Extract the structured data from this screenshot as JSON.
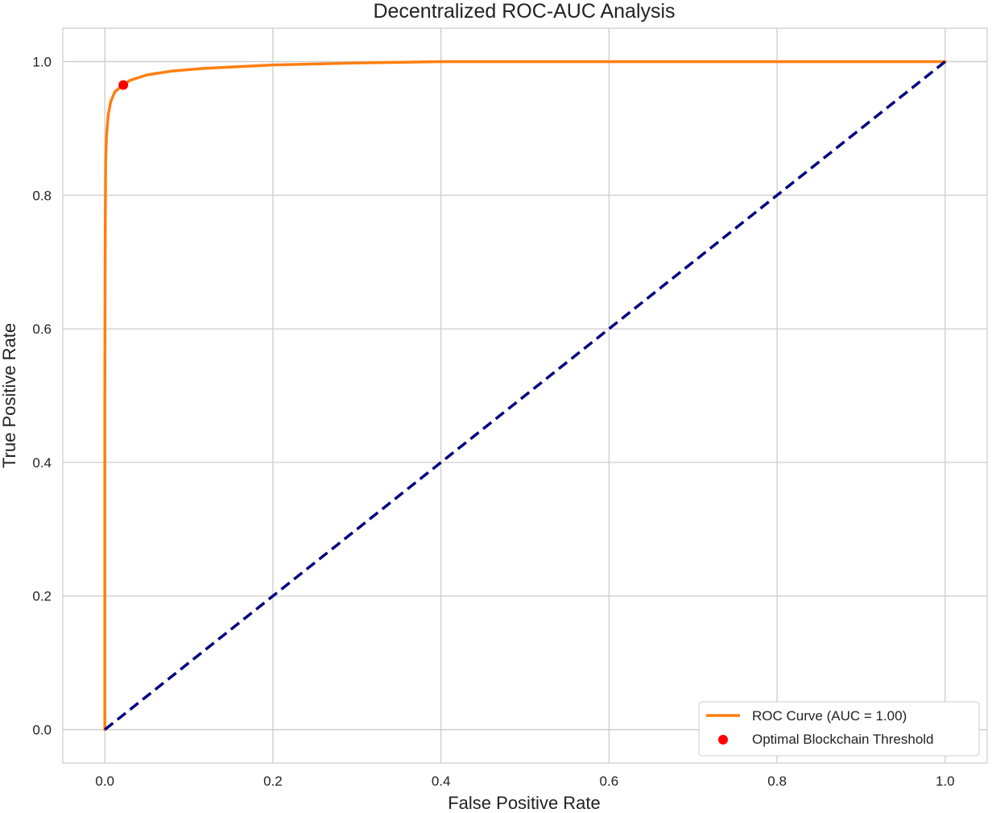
{
  "chart_data": {
    "type": "line",
    "title": "Decentralized ROC-AUC Analysis",
    "xlabel": "False Positive Rate",
    "ylabel": "True Positive Rate",
    "xlim": [
      -0.05,
      1.05
    ],
    "ylim": [
      -0.05,
      1.05
    ],
    "x_ticks": [
      0.0,
      0.2,
      0.4,
      0.6,
      0.8,
      1.0
    ],
    "x_tick_labels": [
      "0.0",
      "0.2",
      "0.4",
      "0.6",
      "0.8",
      "1.0"
    ],
    "y_ticks": [
      0.0,
      0.2,
      0.4,
      0.6,
      0.8,
      1.0
    ],
    "y_tick_labels": [
      "0.0",
      "0.2",
      "0.4",
      "0.6",
      "0.8",
      "1.0"
    ],
    "grid": true,
    "legend_position": "bottom-right",
    "colors": {
      "roc": "#ff7f0e",
      "diagonal": "#000080",
      "threshold": "#ff0000",
      "grid": "#cccccc",
      "frame": "#cccccc"
    },
    "series": [
      {
        "name": "ROC Curve (AUC = 1.00)",
        "style": "solid",
        "x": [
          0.0,
          0.0,
          0.0005,
          0.001,
          0.002,
          0.004,
          0.007,
          0.012,
          0.02,
          0.03,
          0.05,
          0.08,
          0.12,
          0.2,
          0.3,
          0.4,
          0.6,
          0.8,
          1.0
        ],
        "y": [
          0.0,
          0.5,
          0.75,
          0.85,
          0.89,
          0.92,
          0.94,
          0.955,
          0.963,
          0.972,
          0.98,
          0.986,
          0.99,
          0.995,
          0.998,
          1.0,
          1.0,
          1.0,
          1.0
        ]
      },
      {
        "name": "diagonal",
        "style": "dashed",
        "x": [
          0.0,
          1.0
        ],
        "y": [
          0.0,
          1.0
        ]
      }
    ],
    "points": [
      {
        "name": "Optimal Blockchain Threshold",
        "x": 0.022,
        "y": 0.965
      }
    ],
    "legend": [
      {
        "label": "ROC Curve (AUC = 1.00)",
        "kind": "line"
      },
      {
        "label": "Optimal Blockchain Threshold",
        "kind": "marker"
      }
    ]
  }
}
